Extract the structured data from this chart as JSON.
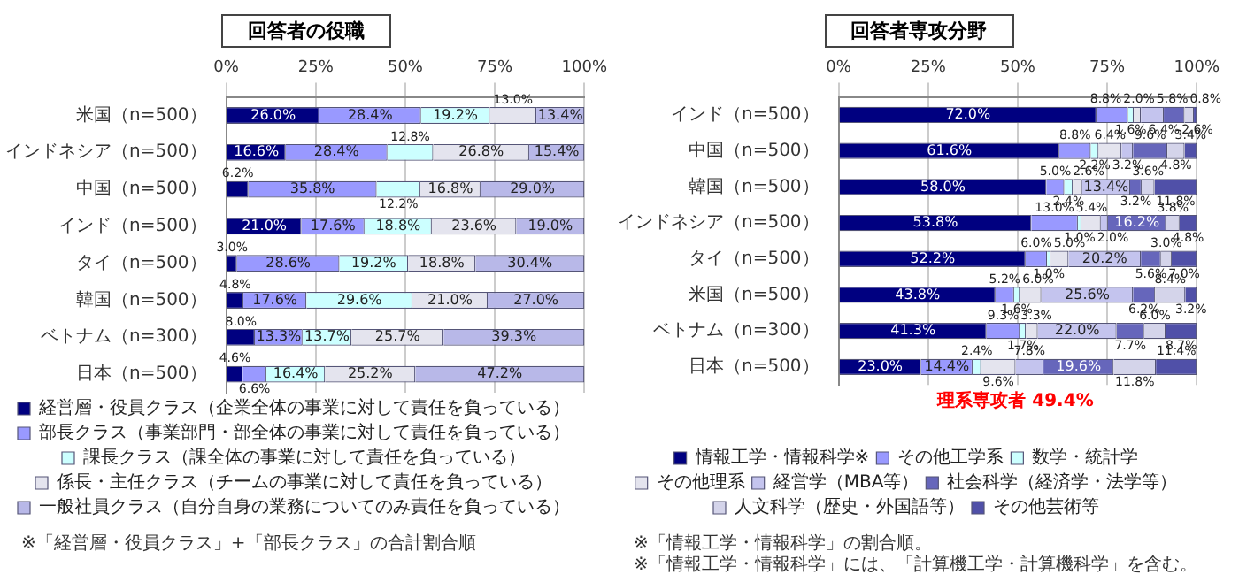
{
  "chart_data": [
    {
      "type": "bar",
      "title": "回答者の役職",
      "orientation": "horizontal",
      "stacked": true,
      "categories": [
        "米国（n=500）",
        "インドネシア（n=500）",
        "中国（n=500）",
        "インド（n=500）",
        "タイ（n=500）",
        "韓国（n=500）",
        "ベトナム（n=300）",
        "日本（n=500）"
      ],
      "series": [
        {
          "name": "経営層・役員クラス（企業全体の事業に対して責任を負っている）",
          "color": "#000080",
          "values": [
            26.0,
            16.6,
            6.2,
            21.0,
            3.0,
            4.8,
            8.0,
            4.6
          ],
          "value_labels": [
            "26.0%",
            "16.6%",
            "6.2%",
            "21.0%",
            "3.0%",
            "4.8%",
            "8.0%",
            "4.6%"
          ]
        },
        {
          "name": "部長クラス（事業部門・部全体の事業に対して責任を負っている）",
          "color": "#9999ff",
          "values": [
            28.4,
            28.4,
            35.8,
            17.6,
            28.6,
            17.6,
            13.3,
            6.6
          ],
          "value_labels": [
            "28.4%",
            "28.4%",
            "35.8%",
            "17.6%",
            "28.6%",
            "17.6%",
            "13.3%",
            "6.6%"
          ]
        },
        {
          "name": "課長クラス（課全体の事業に対して責任を負っている）",
          "color": "#ccffff",
          "values": [
            19.2,
            12.8,
            12.2,
            18.8,
            19.2,
            29.6,
            13.7,
            16.4
          ],
          "value_labels": [
            "19.2%",
            "12.8%",
            "12.2%",
            "18.8%",
            "19.2%",
            "29.6%",
            "13.7%",
            "16.4%"
          ]
        },
        {
          "name": "係長・主任クラス（チームの事業に対して責任を負っている）",
          "color": "#e4e4ee",
          "values": [
            13.0,
            26.8,
            16.8,
            23.6,
            18.8,
            21.0,
            25.7,
            25.2
          ],
          "value_labels": [
            "13.0%",
            "26.8%",
            "16.8%",
            "23.6%",
            "18.8%",
            "21.0%",
            "25.7%",
            "25.2%"
          ]
        },
        {
          "name": "一般社員クラス（自分自身の業務についてのみ責任を負っている）",
          "color": "#b8b8e8",
          "values": [
            13.4,
            15.4,
            29.0,
            19.0,
            30.4,
            27.0,
            39.3,
            47.2
          ],
          "value_labels": [
            "13.4%",
            "15.4%",
            "29.0%",
            "19.0%",
            "30.4%",
            "27.0%",
            "39.3%",
            "47.2%"
          ]
        }
      ],
      "xlim": [
        0,
        100
      ],
      "xticks": [
        {
          "value": 0,
          "label": "0%"
        },
        {
          "value": 25,
          "label": "25%"
        },
        {
          "value": 50,
          "label": "50%"
        },
        {
          "value": 75,
          "label": "75%"
        },
        {
          "value": 100,
          "label": "100%"
        }
      ],
      "grid": "x",
      "legend": "bottom",
      "annotations": [
        "※「経営層・役員クラス」+「部長クラス」の合計割合順"
      ]
    },
    {
      "type": "bar",
      "title": "回答者専攻分野",
      "orientation": "horizontal",
      "stacked": true,
      "categories": [
        "インド（n=500）",
        "中国（n=500）",
        "韓国（n=500）",
        "インドネシア（n=500）",
        "タイ（n=500）",
        "米国（n=500）",
        "ベトナム（n=300）",
        "日本（n=500）"
      ],
      "series": [
        {
          "name": "情報工学・情報科学※",
          "color": "#000080",
          "values": [
            72.0,
            61.6,
            58.0,
            53.8,
            52.2,
            43.8,
            41.3,
            23.0
          ],
          "value_labels": [
            "72.0%",
            "61.6%",
            "58.0%",
            "53.8%",
            "52.2%",
            "43.8%",
            "41.3%",
            "23.0%"
          ]
        },
        {
          "name": "その他工学系",
          "color": "#9999ff",
          "values": [
            8.8,
            8.8,
            5.0,
            13.0,
            6.0,
            5.2,
            9.3,
            14.4
          ],
          "value_labels": [
            "8.8%",
            "8.8%",
            "5.0%",
            "13.0%",
            "6.0%",
            "5.2%",
            "9.3%",
            "14.4%"
          ]
        },
        {
          "name": "数学・統計学",
          "color": "#ccffff",
          "values": [
            1.6,
            2.2,
            2.4,
            1.0,
            1.0,
            1.6,
            1.7,
            2.4
          ],
          "value_labels": [
            "1.6%",
            "2.2%",
            "2.4%",
            "1.0%",
            "1.0%",
            "1.6%",
            "1.7%",
            "2.4%"
          ]
        },
        {
          "name": "その他理系",
          "color": "#e4e4ee",
          "values": [
            2.0,
            6.4,
            2.6,
            5.4,
            5.0,
            6.0,
            3.3,
            9.6
          ],
          "value_labels": [
            "2.0%",
            "6.4%",
            "2.6%",
            "5.4%",
            "5.0%",
            "6.0%",
            "3.3%",
            "9.6%"
          ]
        },
        {
          "name": "経営学（MBA等）",
          "color": "#c4c4ee",
          "values": [
            6.4,
            3.2,
            13.4,
            2.0,
            20.2,
            25.6,
            22.0,
            7.8
          ],
          "value_labels": [
            "6.4%",
            "3.2%",
            "13.4%",
            "2.0%",
            "20.2%",
            "25.6%",
            "22.0%",
            "7.8%"
          ]
        },
        {
          "name": "社会科学（経済学・法学等）",
          "color": "#6666bb",
          "values": [
            5.8,
            9.6,
            3.2,
            16.2,
            5.6,
            6.2,
            7.7,
            19.6
          ],
          "value_labels": [
            "5.8%",
            "9.6%",
            "3.2%",
            "16.2%",
            "5.6%",
            "6.2%",
            "7.7%",
            "19.6%"
          ]
        },
        {
          "name": "人文科学（歴史・外国語等）",
          "color": "#d4d4ea",
          "values": [
            2.6,
            4.8,
            3.6,
            3.8,
            3.0,
            8.4,
            6.0,
            11.8
          ],
          "value_labels": [
            "2.6%",
            "4.8%",
            "3.6%",
            "3.8%",
            "3.0%",
            "8.4%",
            "6.0%",
            "11.8%"
          ]
        },
        {
          "name": "その他芸術等",
          "color": "#5050a8",
          "values": [
            0.8,
            3.4,
            11.8,
            4.8,
            7.0,
            3.2,
            8.7,
            11.4
          ],
          "value_labels": [
            "0.8%",
            "3.4%",
            "11.8%",
            "4.8%",
            "7.0%",
            "3.2%",
            "8.7%",
            "11.4%"
          ]
        }
      ],
      "xlim": [
        0,
        100
      ],
      "xticks": [
        {
          "value": 0,
          "label": "0%"
        },
        {
          "value": 25,
          "label": "25%"
        },
        {
          "value": 50,
          "label": "50%"
        },
        {
          "value": 75,
          "label": "75%"
        },
        {
          "value": 100,
          "label": "100%"
        }
      ],
      "grid": "x",
      "legend": "bottom",
      "annotations": [
        {
          "text": "理系専攻者 49.4%",
          "x": 49.4,
          "y": "日本（n=500）"
        },
        "※「情報工学・情報科学」の割合順。",
        "※「情報工学・情報科学」には、「計算機工学・計算機科学」を含む。"
      ]
    }
  ]
}
